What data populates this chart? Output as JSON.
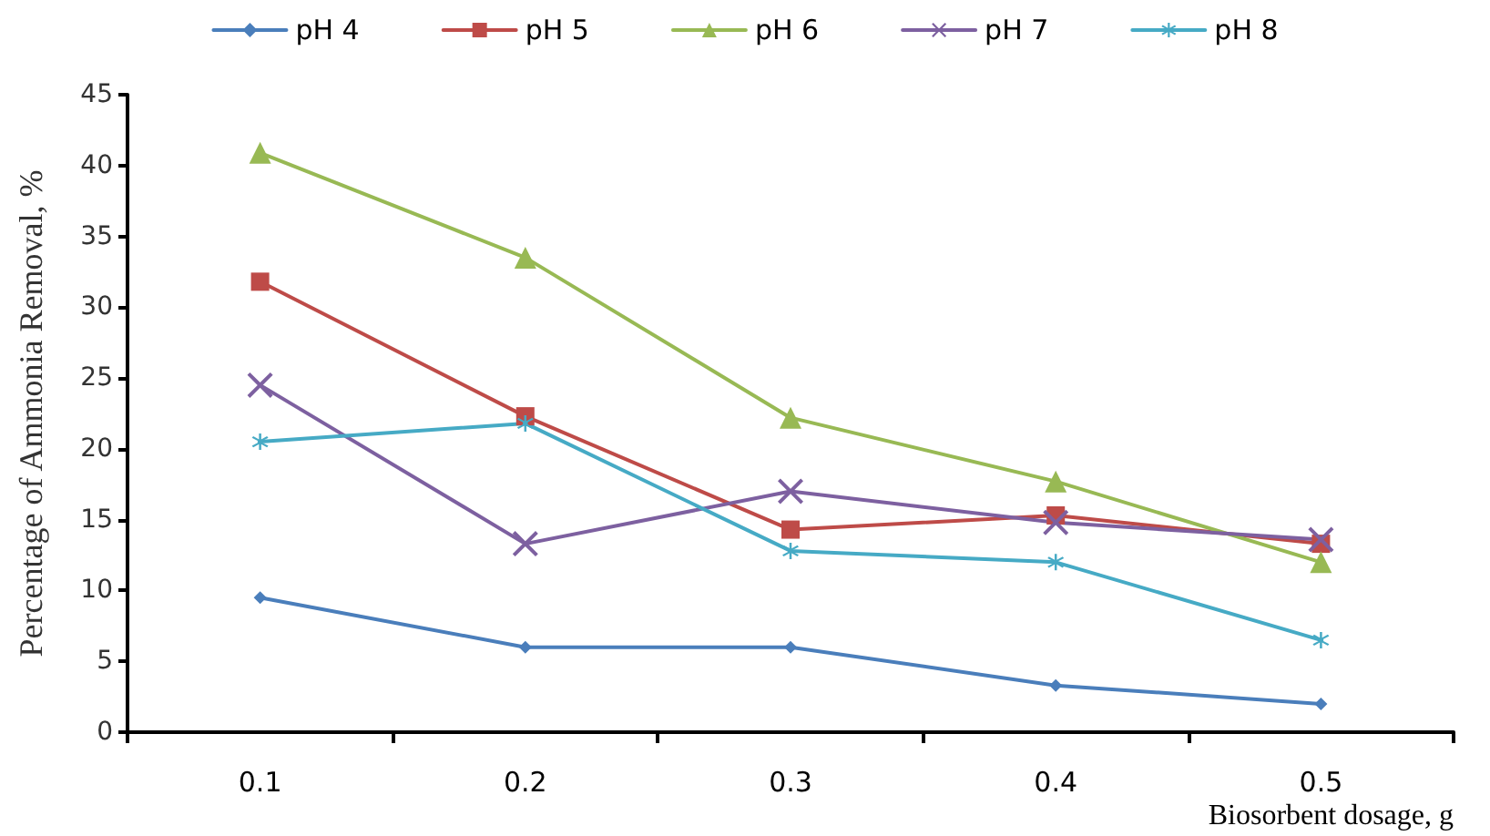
{
  "chart_data": {
    "type": "line",
    "xlabel": "Biosorbent dosage, g",
    "ylabel": "Percentage of Ammonia Removal, %",
    "categories": [
      "0.1",
      "0.2",
      "0.3",
      "0.4",
      "0.5"
    ],
    "ylim": [
      0,
      45
    ],
    "yticks": [
      0,
      5,
      10,
      15,
      20,
      25,
      30,
      35,
      40,
      45
    ],
    "grid": false,
    "legend": "top",
    "series": [
      {
        "name": "pH 4",
        "color": "#4a7ebb",
        "marker": "diamond",
        "values": [
          9.5,
          6.0,
          6.0,
          3.3,
          2.0
        ]
      },
      {
        "name": "pH 5",
        "color": "#be4b48",
        "marker": "square",
        "values": [
          31.8,
          22.3,
          14.3,
          15.3,
          13.3
        ]
      },
      {
        "name": "pH 6",
        "color": "#98b954",
        "marker": "triangle",
        "values": [
          40.9,
          33.5,
          22.2,
          17.7,
          12.0
        ]
      },
      {
        "name": "pH 7",
        "color": "#7d60a0",
        "marker": "cross",
        "values": [
          24.5,
          13.3,
          17.0,
          14.8,
          13.6
        ]
      },
      {
        "name": "pH 8",
        "color": "#46aac5",
        "marker": "star",
        "values": [
          20.5,
          21.8,
          12.8,
          12.0,
          6.5
        ]
      }
    ]
  }
}
